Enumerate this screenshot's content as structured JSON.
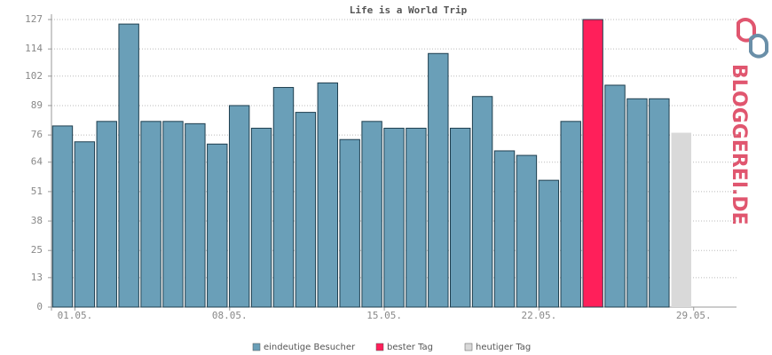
{
  "chart_data": {
    "type": "bar",
    "title": "Life is a World Trip",
    "categories": [
      "01.05.",
      null,
      null,
      null,
      null,
      null,
      null,
      "08.05.",
      null,
      null,
      null,
      null,
      null,
      null,
      "15.05.",
      null,
      null,
      null,
      null,
      null,
      null,
      "22.05.",
      null,
      null,
      null,
      null,
      null,
      null,
      "29.05.",
      null,
      null
    ],
    "series": [
      {
        "name": "eindeutige Besucher",
        "color": "#6a9fb8",
        "values": [
          80,
          73,
          82,
          125,
          82,
          82,
          81,
          72,
          89,
          79,
          97,
          86,
          99,
          74,
          82,
          79,
          79,
          112,
          79,
          93,
          69,
          67,
          56,
          82,
          null,
          98,
          92,
          92,
          null,
          null,
          null
        ]
      },
      {
        "name": "bester Tag",
        "color": "#ff1f5a",
        "values": [
          null,
          null,
          null,
          null,
          null,
          null,
          null,
          null,
          null,
          null,
          null,
          null,
          null,
          null,
          null,
          null,
          null,
          null,
          null,
          null,
          null,
          null,
          null,
          null,
          127,
          null,
          null,
          null,
          null,
          null,
          null
        ]
      },
      {
        "name": "heutiger Tag",
        "color": "#d9d9d9",
        "values": [
          null,
          null,
          null,
          null,
          null,
          null,
          null,
          null,
          null,
          null,
          null,
          null,
          null,
          null,
          null,
          null,
          null,
          null,
          null,
          null,
          null,
          null,
          null,
          null,
          null,
          null,
          null,
          null,
          77,
          null,
          null
        ]
      }
    ],
    "ylim": [
      0,
      127
    ],
    "yticks": [
      0,
      13,
      25,
      38,
      51,
      64,
      76,
      89,
      102,
      114,
      127
    ],
    "grid": true,
    "logo": "BLOGGEREI.DE"
  }
}
